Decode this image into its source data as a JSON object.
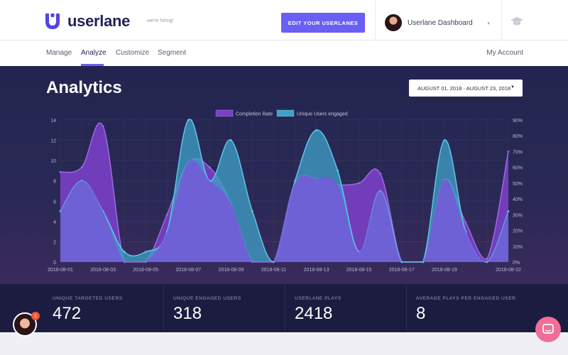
{
  "header": {
    "logo_text": "userlane",
    "hiring_text": "we're hiring!",
    "edit_button": "EDIT YOUR USERLANES",
    "dashboard_select": "Userlane Dashboard",
    "caret_icon": "chevron-down-icon",
    "cap_icon": "graduation-cap-icon"
  },
  "nav": {
    "items": [
      {
        "label": "Manage"
      },
      {
        "label": "Analyze"
      },
      {
        "label": "Customize"
      },
      {
        "label": "Segment"
      }
    ],
    "active": "Analyze",
    "account": "My Account"
  },
  "page": {
    "title": "Analytics",
    "date_range": "AUGUST 01, 2018 - AUGUST 23, 2018"
  },
  "colors": {
    "accent": "#6a5ff2",
    "completion": "#7a3fc7",
    "users": "#3fa2c9",
    "chat": "#ef6f96"
  },
  "chart_data": {
    "type": "area",
    "legend": [
      {
        "name": "Completion Rate",
        "color": "#7a3fc7"
      },
      {
        "name": "Unique Users engaged",
        "color": "#3fa2c9"
      }
    ],
    "x": [
      "2018-08-01",
      "2018-08-02",
      "2018-08-03",
      "2018-08-04",
      "2018-08-05",
      "2018-08-06",
      "2018-08-07",
      "2018-08-08",
      "2018-08-09",
      "2018-08-10",
      "2018-08-11",
      "2018-08-12",
      "2018-08-13",
      "2018-08-14",
      "2018-08-15",
      "2018-08-16",
      "2018-08-17",
      "2018-08-18",
      "2018-08-19",
      "2018-08-20",
      "2018-08-21",
      "2018-08-22"
    ],
    "x_ticks": [
      "2018-08-01",
      "2018-08-03",
      "2018-08-05",
      "2018-08-07",
      "2018-08-09",
      "2018-08-11",
      "2018-08-13",
      "2018-08-15",
      "2018-08-17",
      "2018-08-19",
      "2018-08-22"
    ],
    "y_left": {
      "min": 0,
      "max": 14,
      "ticks": [
        "0",
        "2",
        "4",
        "6",
        "8",
        "10",
        "12",
        "14"
      ]
    },
    "y_right": {
      "min": 0,
      "max": 90,
      "ticks": [
        "0%",
        "10%",
        "20%",
        "30%",
        "40%",
        "50%",
        "60%",
        "70%",
        "80%",
        "90%"
      ]
    },
    "series": [
      {
        "name": "Completion Rate",
        "axis": "right",
        "values": [
          57,
          60,
          86,
          0,
          0,
          30,
          63,
          60,
          37,
          0,
          0,
          50,
          53,
          49,
          50,
          56,
          0,
          0,
          52,
          25,
          2,
          70
        ]
      },
      {
        "name": "Unique Users engaged",
        "axis": "left",
        "values": [
          5,
          8,
          5,
          1,
          1,
          3,
          14,
          8,
          12,
          5,
          0,
          8,
          13,
          9,
          1,
          7,
          0,
          0,
          12,
          3,
          0,
          5
        ]
      }
    ]
  },
  "stats": [
    {
      "label": "UNIQUE TARGETED USERS",
      "value": "472"
    },
    {
      "label": "UNIQUE ENGAGED USERS",
      "value": "318"
    },
    {
      "label": "USERLANE PLAYS",
      "value": "2418"
    },
    {
      "label": "AVERAGE PLAYS PER ENGAGED USER",
      "value": "8"
    }
  ],
  "support": {
    "badge": "1"
  }
}
